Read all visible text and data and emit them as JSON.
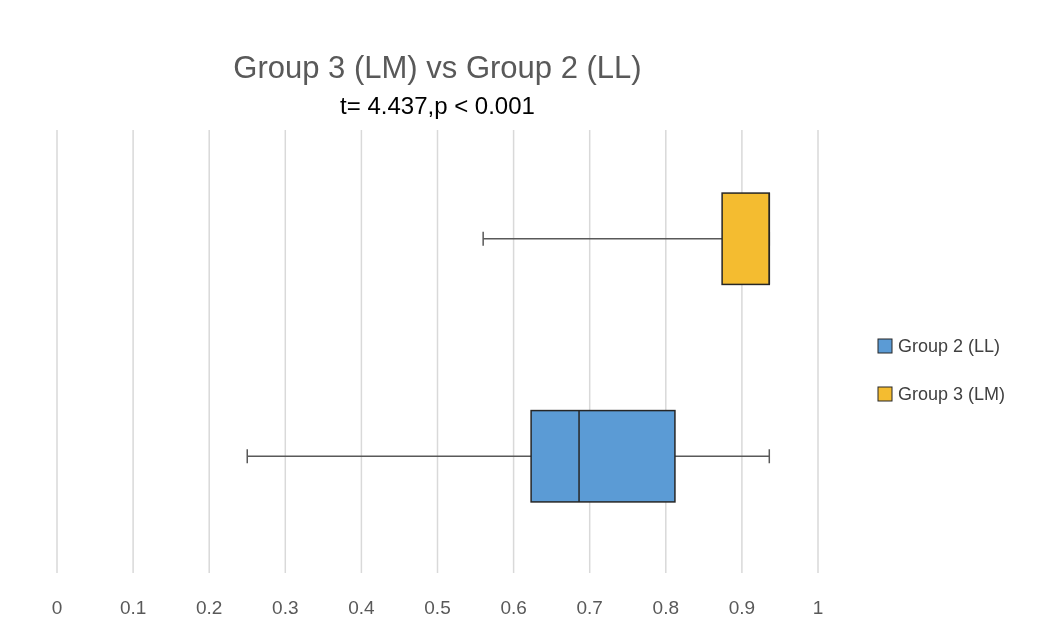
{
  "chart_data": {
    "type": "box",
    "title": "Group 3 (LM) vs Group 2 (LL)",
    "subtitle": "t= 4.437,p < 0.001",
    "orientation": "horizontal",
    "categories": [
      null,
      null
    ],
    "series": [
      {
        "name": "Group 2 (LL)",
        "color": "#5b9bd5",
        "boxes": [
          null,
          {
            "low": 0.25,
            "q1": 0.623,
            "median": 0.686,
            "q3": 0.812,
            "high": 0.936
          }
        ]
      },
      {
        "name": "Group 3 (LM)",
        "color": "#f4bc30",
        "boxes": [
          {
            "low": 0.56,
            "q1": 0.874,
            "median": 0.936,
            "q3": 0.936,
            "high": 0.936
          },
          null
        ]
      }
    ],
    "xlim": [
      0,
      1
    ],
    "xticks": [
      0,
      0.1,
      0.2,
      0.3,
      0.4,
      0.5,
      0.6,
      0.7,
      0.8,
      0.9,
      1
    ],
    "grid": "x",
    "legend": "right"
  }
}
